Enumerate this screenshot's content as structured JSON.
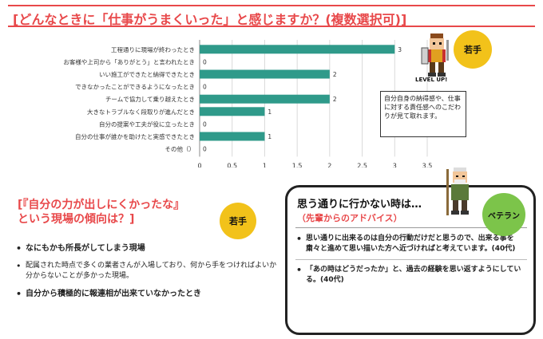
{
  "title": "[どんなときに「仕事がうまくいった」と感じますか？(複数選択可)]",
  "chart_data": {
    "type": "bar",
    "orientation": "horizontal",
    "categories": [
      "工程通りに現場が終わったとき",
      "お客様や上司から「ありがとう」と言われたとき",
      "いい施工ができたと納得できたとき",
      "できなかったことができるようになったとき",
      "チームで協力して乗り越えたとき",
      "大きなトラブルなく段取りが進んだとき",
      "自分の提案や工夫が役に立ったとき",
      "自分の仕事が誰かを助けたと実感できたとき",
      "その他（）"
    ],
    "values": [
      3,
      0,
      2,
      0,
      2,
      1,
      0,
      1,
      0
    ],
    "xlim": [
      0,
      3.5
    ],
    "xticks": [
      "0",
      "0.5",
      "1",
      "1.5",
      "2",
      "2.5",
      "3",
      "3.5"
    ],
    "grid": true,
    "colors": {
      "bar": "#2f9a8a"
    }
  },
  "top_right": {
    "badge": "若手",
    "levelup": "LEVEL UP!",
    "note": "自分自身の納得感や、仕事に対する責任感へのこだわりが見て取れます。"
  },
  "left": {
    "heading_1": "[『自分の力が出しにくかったな』",
    "heading_2": "という現場の傾向は？]",
    "badge": "若手",
    "items": [
      "なにもかも所長がしてしまう現場",
      "配属された時点で多くの業者さんが入場しており、何から手をつければよいか分からないことが多かった現場。",
      "自分から積極的に報連相が出来ていなかったとき"
    ]
  },
  "right": {
    "heading": "思う通りに行かない時は…",
    "subheading": "（先輩からのアドバイス）",
    "badge": "ベテラン",
    "items": [
      "思い通りに出来るのは自分の行動だけだと思うので、出来る事を粛々と進めて思い描いた方へ近づければと考えています。(40代)",
      "「あの時はどうだったか」と、過去の経験を思い返すようにしている。(40代)"
    ]
  }
}
